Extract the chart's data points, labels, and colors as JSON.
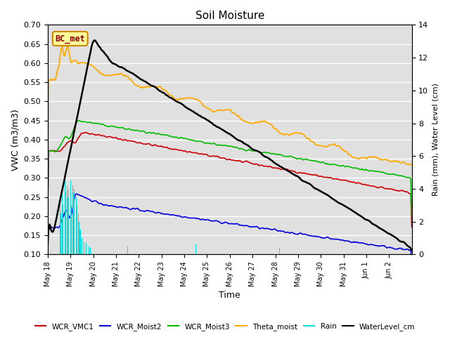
{
  "title": "Soil Moisture",
  "xlabel": "Time",
  "ylabel_left": "VWC (m3/m3)",
  "ylabel_right": "Rain (mm), Water Level (cm)",
  "ylim_left": [
    0.1,
    0.7
  ],
  "ylim_right": [
    0,
    14
  ],
  "bg_color": "#e0e0e0",
  "fig_color": "#ffffff",
  "annotation_label": "BC_met",
  "annotation_color": "#8b0000",
  "annotation_bg": "#ffff99",
  "annotation_border": "#cc8800",
  "series_colors": {
    "WCR_VMC1": "#cc0000",
    "WCR_Moist2": "#0000dd",
    "WCR_Moist3": "#00bb00",
    "Theta_moist": "#ffaa00",
    "Rain": "#00dddd",
    "WaterLevel_cm": "#000000"
  },
  "x_tick_labels": [
    "May 18",
    "May 19",
    "May 20",
    "May 21",
    "May 22",
    "May 23",
    "May 24",
    "May 25",
    "May 26",
    "May 27",
    "May 28",
    "May 29",
    "May 30",
    "May 31",
    "Jun 1",
    "Jun 2"
  ],
  "n_days": 16
}
